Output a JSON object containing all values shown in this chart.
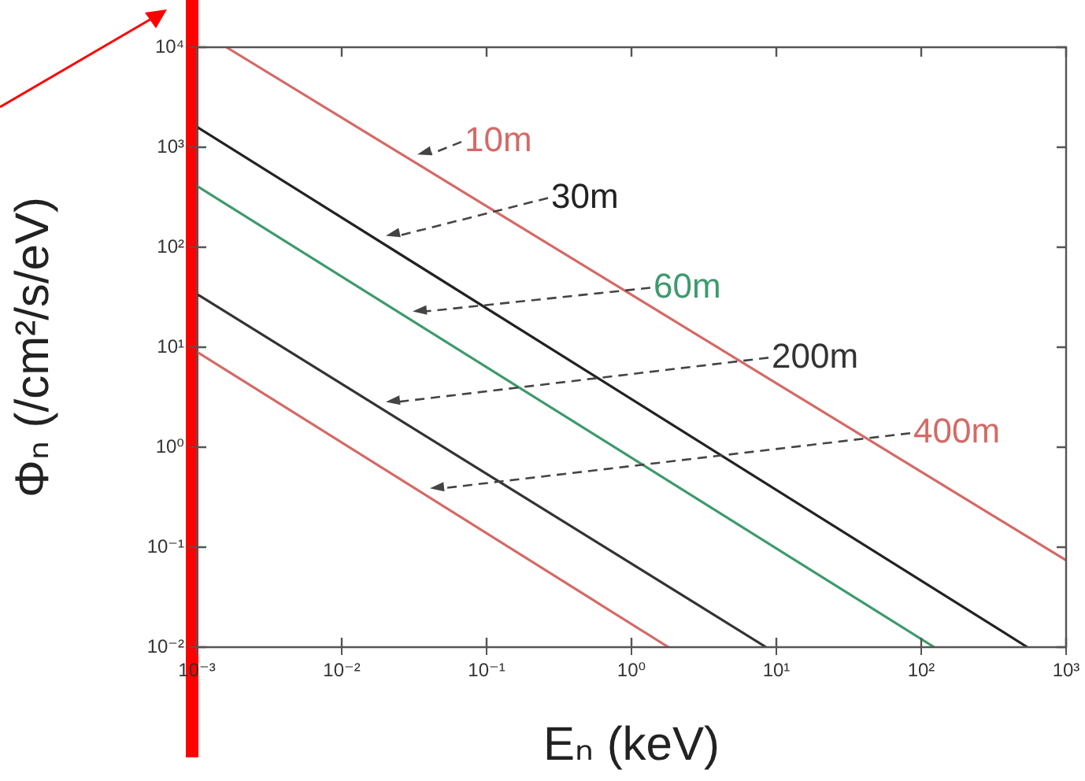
{
  "chart_data": {
    "type": "line",
    "xlabel": "Eₙ (keV)",
    "ylabel": "Φₙ (/cm²/s/eV)",
    "log": "xy",
    "marker": "none",
    "line_style": "solid",
    "grid": false,
    "legend": false,
    "xlim": [
      0.001,
      1000
    ],
    "ylim": [
      0.01,
      10000
    ],
    "xticks": [
      {
        "value": 0.001,
        "label": "10⁻³"
      },
      {
        "value": 0.01,
        "label": "10⁻²"
      },
      {
        "value": 0.1,
        "label": "10⁻¹"
      },
      {
        "value": 1,
        "label": "10⁰"
      },
      {
        "value": 10,
        "label": "10¹"
      },
      {
        "value": 100,
        "label": "10²"
      },
      {
        "value": 1000,
        "label": "10³"
      }
    ],
    "yticks": [
      {
        "value": 0.01,
        "label": "10⁻²"
      },
      {
        "value": 0.1,
        "label": "10⁻¹"
      },
      {
        "value": 1,
        "label": "10⁰"
      },
      {
        "value": 10,
        "label": "10¹"
      },
      {
        "value": 100,
        "label": "10²"
      },
      {
        "value": 1000,
        "label": "10³"
      },
      {
        "value": 10000,
        "label": "10⁴"
      }
    ],
    "series": [
      {
        "name": "10m",
        "color": "#d46a66",
        "x": [
          0.0016,
          1000
        ],
        "values": [
          10000,
          0.074
        ]
      },
      {
        "name": "30m",
        "color": "#222222",
        "x": [
          0.001,
          540
        ],
        "values": [
          1600,
          0.01
        ]
      },
      {
        "name": "60m",
        "color": "#3d9a6e",
        "x": [
          0.001,
          123
        ],
        "values": [
          410,
          0.01
        ]
      },
      {
        "name": "200m",
        "color": "#333333",
        "x": [
          0.001,
          8.5
        ],
        "values": [
          34,
          0.01
        ]
      },
      {
        "name": "400m",
        "color": "#d46a66",
        "x": [
          0.001,
          1.8
        ],
        "values": [
          9,
          0.01
        ]
      }
    ]
  }
}
